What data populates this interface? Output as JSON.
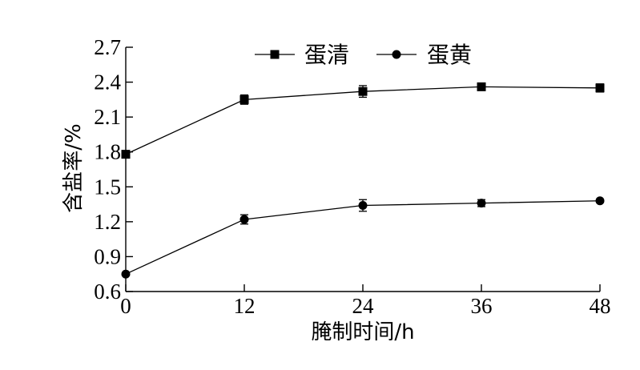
{
  "chart_data": {
    "type": "line",
    "title": "",
    "xlabel": "腌制时间/h",
    "ylabel": "含盐率/%",
    "x": [
      0,
      12,
      24,
      36,
      48
    ],
    "xticks": [
      "0",
      "12",
      "24",
      "36",
      "48"
    ],
    "yticks": [
      "0.6",
      "0.9",
      "1.2",
      "1.5",
      "1.8",
      "2.1",
      "2.4",
      "2.7"
    ],
    "xlim": [
      0,
      48
    ],
    "ylim": [
      0.6,
      2.7
    ],
    "grid": false,
    "legend_position": "top",
    "series": [
      {
        "name": "蛋清",
        "marker": "square",
        "values": [
          1.78,
          2.25,
          2.32,
          2.36,
          2.35
        ],
        "errors": [
          0.02,
          0.04,
          0.05,
          0.025,
          0.035
        ]
      },
      {
        "name": "蛋黄",
        "marker": "circle",
        "values": [
          0.75,
          1.22,
          1.34,
          1.36,
          1.38
        ],
        "errors": [
          0.01,
          0.04,
          0.05,
          0.03,
          0.015
        ]
      }
    ]
  }
}
